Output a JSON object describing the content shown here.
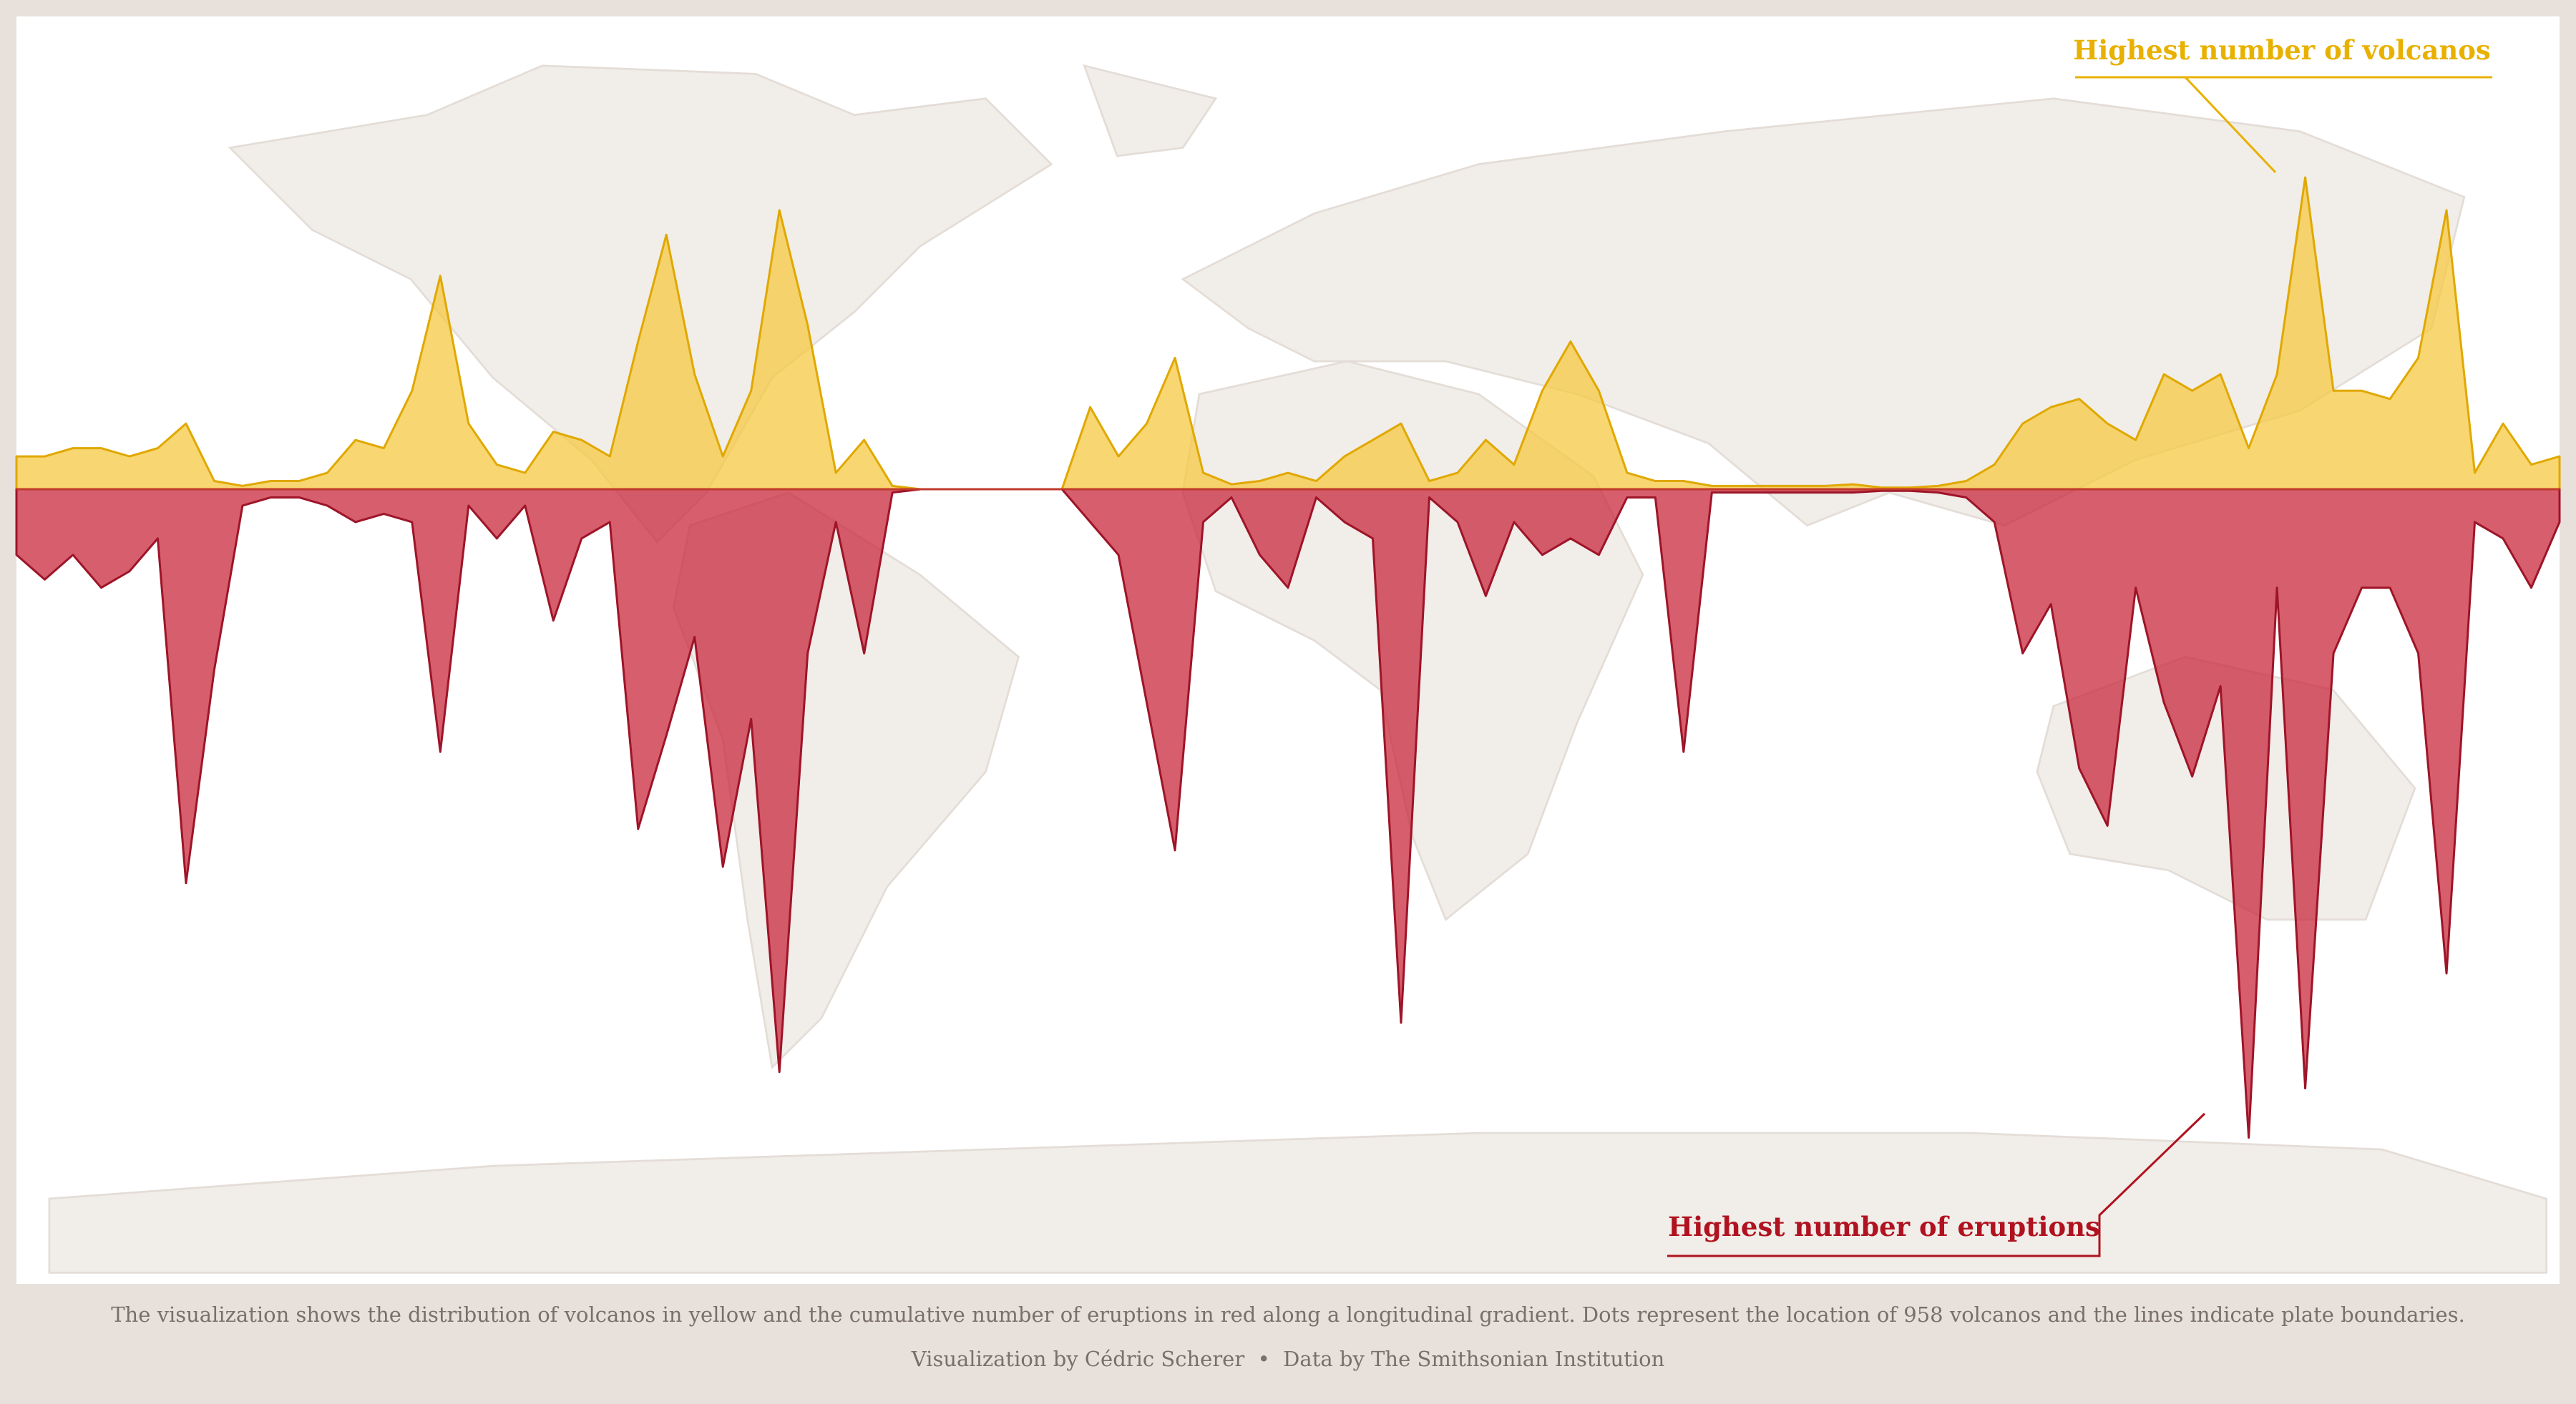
{
  "chart_data": {
    "type": "mirrored-area",
    "annotations": [
      "Highest number of volcanos",
      "Highest number of eruptions"
    ],
    "caption": "The visualization shows the distribution of volcanos in yellow and the cumulative number of eruptions in red along a longitudinal gradient. Dots represent the location of 958 volcanos and the lines indicate plate boundaries.",
    "credits": "Visualization by Cédric Scherer  •  Data by The Smithsonian Institution",
    "x": [
      -180,
      -176,
      -172,
      -168,
      -164,
      -160,
      -156,
      -152,
      -148,
      -144,
      -140,
      -136,
      -132,
      -128,
      -124,
      -120,
      -116,
      -112,
      -108,
      -104,
      -100,
      -96,
      -92,
      -88,
      -84,
      -80,
      -76,
      -72,
      -68,
      -64,
      -60,
      -56,
      -52,
      -48,
      -44,
      -40,
      -36,
      -32,
      -28,
      -24,
      -20,
      -16,
      -12,
      -8,
      -4,
      0,
      4,
      8,
      12,
      16,
      20,
      24,
      28,
      32,
      36,
      40,
      44,
      48,
      52,
      56,
      60,
      64,
      68,
      72,
      76,
      80,
      84,
      88,
      92,
      96,
      100,
      104,
      108,
      112,
      116,
      120,
      124,
      128,
      132,
      136,
      140,
      144,
      148,
      152,
      156,
      160,
      164,
      168,
      172,
      176,
      180
    ],
    "xlim": [
      -180,
      180
    ],
    "ylim": [
      0,
      200
    ],
    "y2lim": [
      0,
      400
    ],
    "mirror": true,
    "series": [
      {
        "name": "volcanos",
        "color": "#f5c842",
        "values": [
          20,
          20,
          25,
          25,
          20,
          25,
          40,
          5,
          2,
          5,
          5,
          10,
          30,
          25,
          60,
          130,
          40,
          15,
          10,
          35,
          30,
          20,
          90,
          155,
          70,
          20,
          60,
          170,
          100,
          10,
          30,
          2,
          0,
          0,
          0,
          0,
          0,
          0,
          50,
          20,
          40,
          80,
          10,
          3,
          5,
          10,
          5,
          20,
          30,
          40,
          5,
          10,
          30,
          15,
          60,
          90,
          60,
          10,
          5,
          5,
          2,
          2,
          2,
          2,
          2,
          3,
          1,
          1,
          2,
          5,
          15,
          40,
          50,
          55,
          40,
          30,
          70,
          60,
          70,
          25,
          70,
          190,
          60,
          60,
          55,
          80,
          170,
          10,
          40,
          15,
          20
        ]
      },
      {
        "name": "eruptions",
        "color": "#c8283c",
        "axis": "y2",
        "values": [
          40,
          55,
          40,
          60,
          50,
          30,
          240,
          110,
          10,
          5,
          5,
          10,
          20,
          15,
          20,
          160,
          10,
          30,
          10,
          80,
          30,
          20,
          207,
          150,
          90,
          230,
          140,
          355,
          100,
          20,
          100,
          2,
          0,
          0,
          0,
          0,
          0,
          0,
          20,
          40,
          130,
          220,
          20,
          5,
          40,
          60,
          5,
          20,
          30,
          325,
          5,
          20,
          65,
          20,
          40,
          30,
          40,
          5,
          5,
          160,
          2,
          2,
          2,
          2,
          2,
          2,
          1,
          1,
          2,
          5,
          20,
          100,
          70,
          170,
          205,
          60,
          130,
          175,
          120,
          395,
          60,
          365,
          100,
          60,
          60,
          100,
          295,
          20,
          30,
          60,
          20
        ]
      }
    ]
  }
}
